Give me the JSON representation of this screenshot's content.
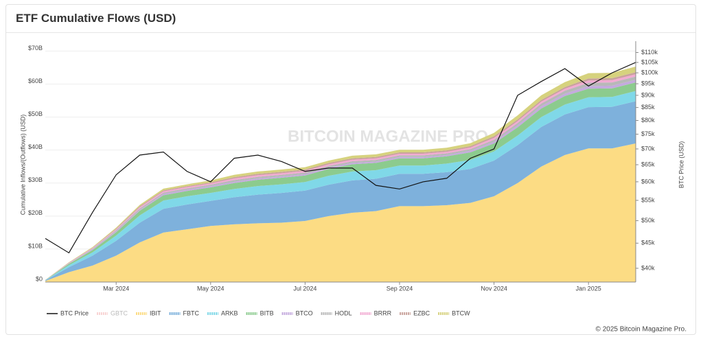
{
  "header": {
    "title": "ETF Cumulative Flows (USD)"
  },
  "chart_data": {
    "type": "area",
    "y_label": "Cumulative Inflows/(Outflows) (USD)",
    "y2_label": "BTC Price (USD)",
    "watermark": "BITCOIN MAGAZINE PRO",
    "categories": [
      null,
      null,
      null,
      "Mar 2024",
      null,
      null,
      null,
      "May 2024",
      null,
      null,
      null,
      "Jul 2024",
      null,
      null,
      null,
      "Sep 2024",
      null,
      null,
      null,
      "Nov 2024",
      null,
      null,
      null,
      "Jan 2025",
      null,
      null
    ],
    "ylim": [
      0,
      73
    ],
    "yticks": [
      {
        "value": 0,
        "label": "$0"
      },
      {
        "value": 10,
        "label": "$10B"
      },
      {
        "value": 20,
        "label": "$20B"
      },
      {
        "value": 30,
        "label": "$30B"
      },
      {
        "value": 40,
        "label": "$40B"
      },
      {
        "value": 50,
        "label": "$50B"
      },
      {
        "value": 60,
        "label": "$60B"
      },
      {
        "value": 70,
        "label": "$70B"
      }
    ],
    "y2lim": [
      37500,
      116000
    ],
    "y2log": true,
    "y2ticks": [
      {
        "value": 40000,
        "label": "$40k"
      },
      {
        "value": 45000,
        "label": "$45k"
      },
      {
        "value": 50000,
        "label": "$50k"
      },
      {
        "value": 55000,
        "label": "$55k"
      },
      {
        "value": 60000,
        "label": "$60k"
      },
      {
        "value": 65000,
        "label": "$65k"
      },
      {
        "value": 70000,
        "label": "$70k"
      },
      {
        "value": 75000,
        "label": "$75k"
      },
      {
        "value": 80000,
        "label": "$80k"
      },
      {
        "value": 85000,
        "label": "$85k"
      },
      {
        "value": 90000,
        "label": "$90k"
      },
      {
        "value": 95000,
        "label": "$95k"
      },
      {
        "value": 100000,
        "label": "$100k"
      },
      {
        "value": 105000,
        "label": "$105k"
      },
      {
        "value": 110000,
        "label": "$110k"
      }
    ],
    "grid": true,
    "legend": "bottom",
    "series": [
      {
        "name": "BTC Price",
        "color": "#111111",
        "axis": "y2",
        "values": [
          46000,
          43000,
          52000,
          62000,
          68000,
          69000,
          63000,
          60000,
          67000,
          68000,
          66000,
          63000,
          64000,
          64000,
          59000,
          58000,
          60000,
          61000,
          67000,
          70000,
          90000,
          96000,
          102000,
          94000,
          100000,
          105000
        ]
      },
      {
        "name": "GBTC",
        "color": "#f4b8b8",
        "visible": false
      },
      {
        "name": "IBIT",
        "color": "#fcdc84",
        "values": [
          0.3,
          3,
          5,
          8,
          12,
          15,
          16,
          17,
          17.5,
          17.8,
          18,
          18.5,
          20,
          21,
          21.5,
          23,
          23,
          23.3,
          24,
          26,
          30,
          35,
          38.5,
          40.5,
          40.5,
          42
        ]
      },
      {
        "name": "FBTC",
        "color": "#7eb1dc",
        "values": [
          0.2,
          1.5,
          3,
          4.5,
          6,
          7.2,
          7.5,
          7.6,
          8.2,
          8.7,
          9,
          9.2,
          9.5,
          9.8,
          9.8,
          9.8,
          9.8,
          10,
          10.3,
          10.8,
          11.5,
          12,
          12.3,
          12.5,
          12.6,
          12.8
        ]
      },
      {
        "name": "ARKB",
        "color": "#80d8e8",
        "values": [
          0.05,
          0.6,
          1,
          1.6,
          2.2,
          2.5,
          2.5,
          2.4,
          2.5,
          2.6,
          2.6,
          2.6,
          2.7,
          2.7,
          2.6,
          2.5,
          2.5,
          2.6,
          2.7,
          2.8,
          2.9,
          3,
          3,
          3,
          3,
          3.1
        ]
      },
      {
        "name": "BITB",
        "color": "#8ccb8e",
        "values": [
          0.05,
          0.4,
          0.7,
          1,
          1.4,
          1.6,
          1.6,
          1.7,
          1.8,
          1.9,
          2,
          2,
          2.1,
          2.2,
          2.2,
          2.2,
          2.2,
          2.2,
          2.3,
          2.4,
          2.5,
          2.6,
          2.6,
          2.6,
          2.6,
          2.6
        ]
      },
      {
        "name": "BTCO",
        "color": "#c4aade",
        "values": [
          0.02,
          0.1,
          0.2,
          0.3,
          0.3,
          0.4,
          0.4,
          0.4,
          0.4,
          0.4,
          0.4,
          0.4,
          0.4,
          0.4,
          0.4,
          0.4,
          0.4,
          0.4,
          0.5,
          0.5,
          0.6,
          0.7,
          0.7,
          0.8,
          0.8,
          0.8
        ]
      },
      {
        "name": "HODL",
        "color": "#b8b8b8",
        "values": [
          0.02,
          0.1,
          0.2,
          0.3,
          0.4,
          0.4,
          0.4,
          0.4,
          0.5,
          0.5,
          0.5,
          0.5,
          0.5,
          0.5,
          0.5,
          0.5,
          0.5,
          0.5,
          0.5,
          0.6,
          0.7,
          0.8,
          0.9,
          1,
          1,
          1
        ]
      },
      {
        "name": "BRRR",
        "color": "#f2aad2",
        "values": [
          0.01,
          0.1,
          0.2,
          0.3,
          0.4,
          0.4,
          0.4,
          0.4,
          0.5,
          0.5,
          0.5,
          0.5,
          0.5,
          0.5,
          0.5,
          0.5,
          0.5,
          0.5,
          0.5,
          0.6,
          0.6,
          0.6,
          0.6,
          0.7,
          0.7,
          0.7
        ]
      },
      {
        "name": "EZBC",
        "color": "#c9a29c",
        "values": [
          0.01,
          0.1,
          0.1,
          0.2,
          0.3,
          0.3,
          0.3,
          0.3,
          0.4,
          0.4,
          0.4,
          0.4,
          0.4,
          0.4,
          0.4,
          0.4,
          0.4,
          0.4,
          0.4,
          0.5,
          0.5,
          0.5,
          0.5,
          0.6,
          0.6,
          0.6
        ]
      },
      {
        "name": "BTCW",
        "color": "#d6d27e",
        "values": [
          0.01,
          0.1,
          0.2,
          0.3,
          0.4,
          0.5,
          0.5,
          0.6,
          0.7,
          0.7,
          0.7,
          0.7,
          0.7,
          0.8,
          0.8,
          0.8,
          0.8,
          0.8,
          0.9,
          1,
          1.2,
          1.4,
          1.5,
          1.6,
          1.6,
          1.7
        ]
      }
    ]
  },
  "footer": {
    "credit": "© 2025 Bitcoin Magazine Pro."
  }
}
